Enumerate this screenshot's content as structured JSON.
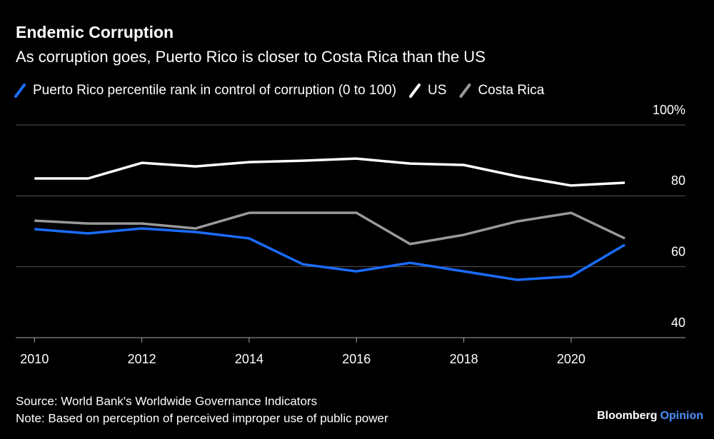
{
  "chart_data": {
    "type": "line",
    "title": "Endemic Corruption",
    "subtitle": "As corruption goes, Puerto Rico is closer to Costa Rica than the US",
    "x": [
      2010,
      2011,
      2012,
      2013,
      2014,
      2015,
      2016,
      2017,
      2018,
      2019,
      2020,
      2021
    ],
    "series": [
      {
        "name": "Puerto Rico percentile rank in control of corruption (0 to 100)",
        "color": "#1a6cff",
        "values": [
          70.6,
          69.4,
          70.8,
          69.8,
          68.0,
          60.7,
          58.7,
          61.1,
          58.7,
          56.3,
          57.3,
          66.2
        ]
      },
      {
        "name": "US",
        "color": "#ffffff",
        "values": [
          84.9,
          84.9,
          89.3,
          88.3,
          89.5,
          89.9,
          90.5,
          89.1,
          88.7,
          85.5,
          82.9,
          83.7
        ]
      },
      {
        "name": "Costa Rica",
        "color": "#999999",
        "values": [
          73.0,
          72.2,
          72.2,
          70.8,
          75.2,
          75.2,
          75.2,
          66.4,
          69.0,
          72.8,
          75.2,
          68.0
        ]
      }
    ],
    "xlim": [
      2009.65,
      2022.13
    ],
    "xticks": [
      2010,
      2012,
      2014,
      2016,
      2018,
      2020
    ],
    "ylim": [
      40,
      100
    ],
    "yticks": [
      40,
      60,
      80,
      {
        "value": 100,
        "label": "100%"
      }
    ],
    "grid": true,
    "legend": "top",
    "source": "Source: World Bank's Worldwide Governance Indicators",
    "note": "Note: Based on perception of perceived improper use of public power",
    "brand": {
      "name": "Bloomberg",
      "section": "Opinion"
    }
  }
}
